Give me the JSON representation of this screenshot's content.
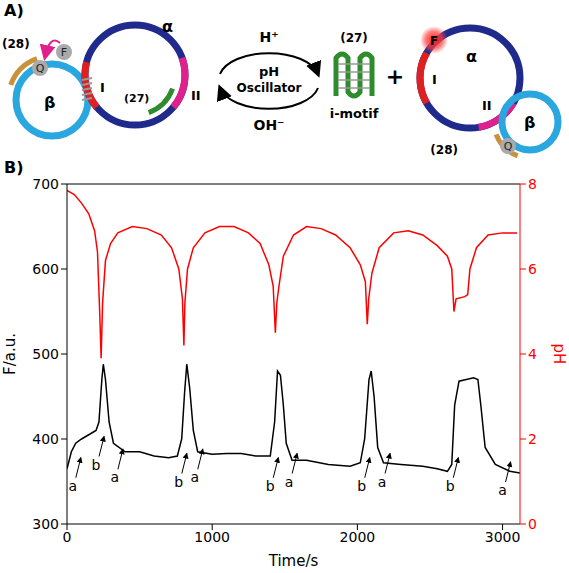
{
  "panel_a": {
    "label": "A)",
    "left": {
      "alpha": "α",
      "beta": "β",
      "site_1": "I",
      "site_2": "II",
      "strand_a": "(27)",
      "strand_b": "(28)",
      "quencher": "Q",
      "fluorophore": "F"
    },
    "middle": {
      "top": "H⁺",
      "center": [
        "pH",
        "Oscillator"
      ],
      "bottom": "OH⁻",
      "product_label": "(27)",
      "product_name": "i-motif",
      "plus": "+"
    },
    "right": {
      "alpha": "α",
      "beta": "β",
      "site_1": "I",
      "site_2": "II",
      "strand_b": "(28)",
      "quencher": "Q",
      "fluorophore": "F"
    }
  },
  "panel_b": {
    "label": "B)"
  },
  "chart_data": {
    "type": "line",
    "x_label": "Time/s",
    "y_label": "F/a.u.",
    "y2_label": "pH",
    "xlim": [
      0,
      3120
    ],
    "xticks": [
      0,
      1000,
      2000,
      3000
    ],
    "ylim": [
      300,
      700
    ],
    "yticks": [
      300,
      400,
      500,
      600,
      700
    ],
    "y2lim": [
      0,
      8
    ],
    "y2ticks": [
      0,
      2,
      4,
      6,
      8
    ],
    "series": [
      {
        "name": "F/a.u.",
        "color": "#000000",
        "x": [
          0,
          30,
          60,
          100,
          150,
          200,
          220,
          240,
          250,
          265,
          290,
          320,
          400,
          500,
          600,
          700,
          760,
          790,
          810,
          825,
          845,
          870,
          900,
          1000,
          1100,
          1200,
          1300,
          1400,
          1430,
          1450,
          1470,
          1490,
          1510,
          1550,
          1650,
          1800,
          1950,
          2020,
          2050,
          2080,
          2095,
          2115,
          2140,
          2180,
          2300,
          2450,
          2550,
          2620,
          2650,
          2670,
          2700,
          2750,
          2800,
          2830,
          2850,
          2880,
          2950,
          3050,
          3120
        ],
        "values": [
          365,
          385,
          395,
          400,
          405,
          410,
          420,
          470,
          488,
          470,
          420,
          395,
          385,
          385,
          380,
          378,
          380,
          400,
          455,
          488,
          460,
          410,
          385,
          382,
          383,
          383,
          380,
          380,
          420,
          480,
          475,
          440,
          395,
          375,
          375,
          370,
          368,
          372,
          400,
          470,
          480,
          450,
          390,
          372,
          370,
          368,
          365,
          362,
          370,
          440,
          468,
          470,
          472,
          470,
          440,
          390,
          370,
          362,
          360
        ]
      },
      {
        "name": "pH",
        "color": "#ff0000",
        "axis": "y2",
        "x": [
          0,
          50,
          100,
          150,
          190,
          210,
          225,
          235,
          245,
          265,
          300,
          350,
          450,
          550,
          650,
          720,
          770,
          795,
          805,
          812,
          830,
          870,
          950,
          1050,
          1150,
          1250,
          1330,
          1390,
          1420,
          1435,
          1445,
          1460,
          1490,
          1560,
          1650,
          1750,
          1850,
          1950,
          2020,
          2055,
          2068,
          2078,
          2100,
          2150,
          2250,
          2350,
          2450,
          2550,
          2620,
          2650,
          2665,
          2680,
          2740,
          2760,
          2775,
          2820,
          2900,
          3000,
          3100
        ],
        "values": [
          7.85,
          7.75,
          7.55,
          7.3,
          6.9,
          6.4,
          5.0,
          3.9,
          5.2,
          6.2,
          6.6,
          6.85,
          7.0,
          6.95,
          6.8,
          6.5,
          6.0,
          5.3,
          4.2,
          5.2,
          6.0,
          6.5,
          6.85,
          7.0,
          7.0,
          6.85,
          6.6,
          6.1,
          5.6,
          4.5,
          5.2,
          5.6,
          6.3,
          6.8,
          7.0,
          6.95,
          6.8,
          6.5,
          6.1,
          5.7,
          4.7,
          5.3,
          5.9,
          6.5,
          6.85,
          6.9,
          6.8,
          6.55,
          6.3,
          6.0,
          5.0,
          5.3,
          5.35,
          5.4,
          6.0,
          6.5,
          6.8,
          6.85,
          6.85
        ]
      }
    ],
    "annotations": [
      {
        "text": "a",
        "x": 40,
        "y": 345
      },
      {
        "text": "b",
        "x": 200,
        "y": 370
      },
      {
        "text": "a",
        "x": 330,
        "y": 355
      },
      {
        "text": "b",
        "x": 770,
        "y": 350
      },
      {
        "text": "a",
        "x": 880,
        "y": 355
      },
      {
        "text": "b",
        "x": 1400,
        "y": 345
      },
      {
        "text": "a",
        "x": 1530,
        "y": 350
      },
      {
        "text": "b",
        "x": 2030,
        "y": 345
      },
      {
        "text": "a",
        "x": 2170,
        "y": 350
      },
      {
        "text": "b",
        "x": 2640,
        "y": 345
      },
      {
        "text": "a",
        "x": 3000,
        "y": 340
      }
    ]
  }
}
